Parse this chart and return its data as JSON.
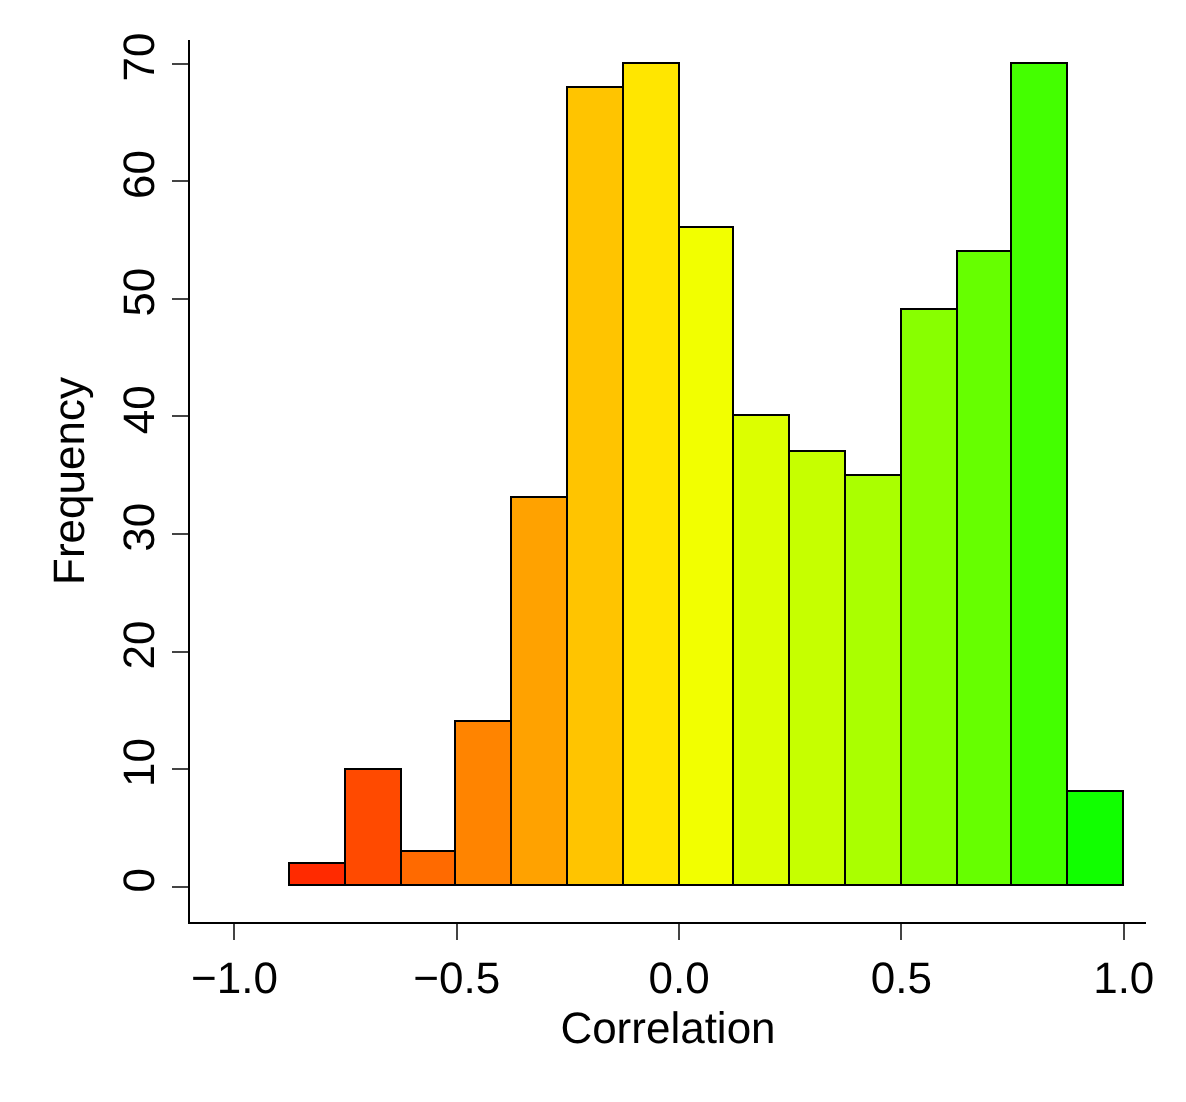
{
  "chart_data": {
    "type": "histogram",
    "xlabel": "Correlation",
    "ylabel": "Frequency",
    "bins": [
      -0.875,
      -0.75,
      -0.625,
      -0.5,
      -0.375,
      -0.25,
      -0.125,
      0,
      0.125,
      0.25,
      0.375,
      0.5,
      0.625,
      0.75,
      0.875,
      1.0
    ],
    "values": [
      2,
      10,
      3,
      14,
      33,
      68,
      70,
      56,
      40,
      37,
      35,
      49,
      54,
      70,
      8
    ],
    "colors": [
      "#ff2a00",
      "#ff4a00",
      "#ff6a00",
      "#ff8400",
      "#ffa200",
      "#ffc400",
      "#ffe600",
      "#f2ff00",
      "#dcff00",
      "#c6ff00",
      "#aaff00",
      "#88ff00",
      "#66ff00",
      "#44ff00",
      "#11ff00"
    ],
    "xlim": [
      -1.1,
      1.05
    ],
    "xticks": [
      {
        "value": -1,
        "label": "−1.0"
      },
      {
        "value": -0.5,
        "label": "−0.5"
      },
      {
        "value": 0,
        "label": "0.0"
      },
      0.5,
      {
        "value": 1,
        "label": "1.0"
      }
    ],
    "ylim": [
      -3,
      72
    ],
    "yticks": [
      0,
      10,
      20,
      30,
      40,
      50,
      60,
      70
    ],
    "grid": false,
    "legend": false
  }
}
